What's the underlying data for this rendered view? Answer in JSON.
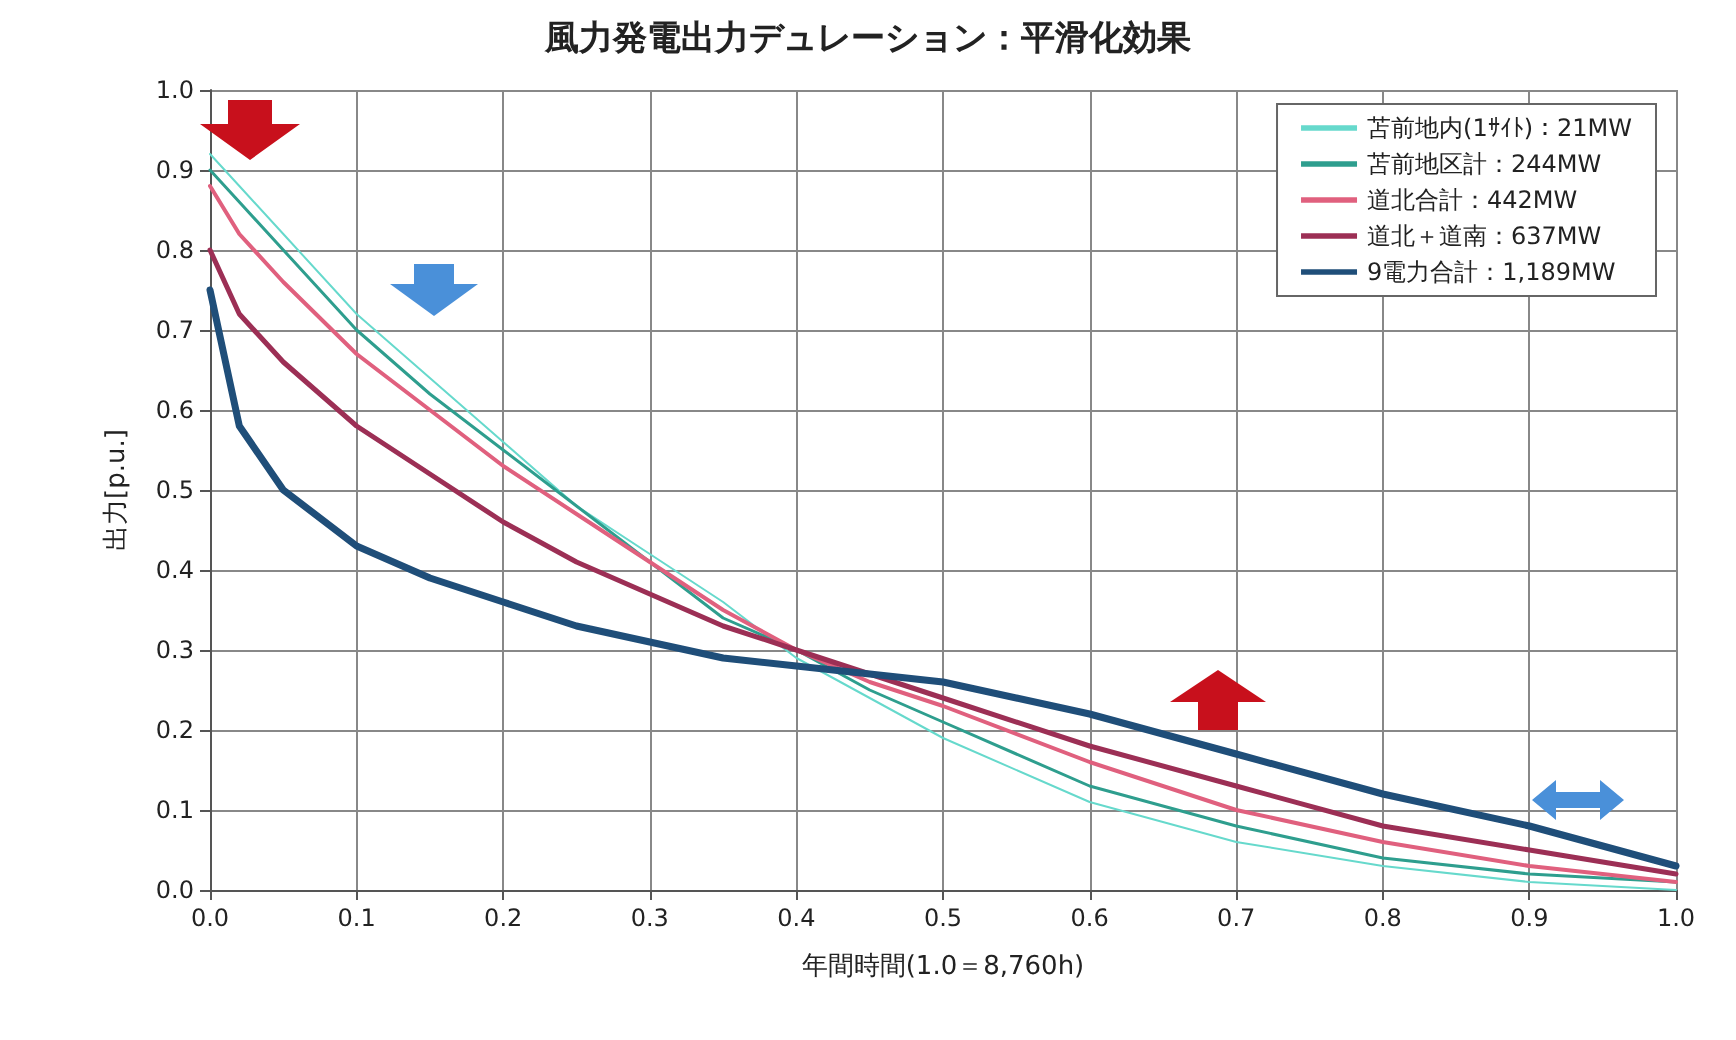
{
  "chart_data": {
    "type": "line",
    "title": "風力発電出力デュレーション：平滑化効果",
    "xlabel": "年間時間(1.0＝8,760h)",
    "ylabel": "出力[p.u.]",
    "x": [
      0,
      0.02,
      0.05,
      0.1,
      0.15,
      0.2,
      0.25,
      0.3,
      0.35,
      0.4,
      0.45,
      0.5,
      0.6,
      0.7,
      0.8,
      0.9,
      1.0
    ],
    "xlim": [
      0,
      1
    ],
    "xticks": [
      {
        "value": 0,
        "label": "0.0"
      },
      0.1,
      0.2,
      0.3,
      0.4,
      0.5,
      0.6,
      0.7,
      0.8,
      0.9,
      {
        "value": 1,
        "label": "1.0"
      }
    ],
    "ylim": [
      0,
      1
    ],
    "yticks": [
      {
        "value": 0,
        "label": "0.0"
      },
      0.1,
      0.2,
      0.3,
      0.4,
      0.5,
      0.6,
      0.7,
      0.8,
      0.9,
      {
        "value": 1,
        "label": "1.0"
      }
    ],
    "grid": true,
    "legend": "top right",
    "marker": "none",
    "line_style": "solid",
    "series": [
      {
        "name": "苫前地内(1ｻｲﾄ)：21MW",
        "color": "#66d9cc",
        "values": [
          0.92,
          0.88,
          0.82,
          0.72,
          0.64,
          0.56,
          0.48,
          0.42,
          0.36,
          0.29,
          0.24,
          0.19,
          0.11,
          0.06,
          0.03,
          0.01,
          0.0
        ]
      },
      {
        "name": "苫前地区計：244MW",
        "color": "#2e9e8e",
        "values": [
          0.9,
          0.86,
          0.8,
          0.7,
          0.62,
          0.55,
          0.48,
          0.41,
          0.34,
          0.3,
          0.25,
          0.21,
          0.13,
          0.08,
          0.04,
          0.02,
          0.01
        ]
      },
      {
        "name": "道北合計：442MW",
        "color": "#e0607e",
        "values": [
          0.88,
          0.82,
          0.76,
          0.67,
          0.6,
          0.53,
          0.47,
          0.41,
          0.35,
          0.3,
          0.26,
          0.23,
          0.16,
          0.1,
          0.06,
          0.03,
          0.01
        ]
      },
      {
        "name": "道北＋道南：637MW",
        "color": "#9c2f55",
        "values": [
          0.8,
          0.72,
          0.66,
          0.58,
          0.52,
          0.46,
          0.41,
          0.37,
          0.33,
          0.3,
          0.27,
          0.24,
          0.18,
          0.13,
          0.08,
          0.05,
          0.02
        ]
      },
      {
        "name": "9電力合計：1,189MW",
        "color": "#1f4e79",
        "values": [
          0.75,
          0.58,
          0.5,
          0.43,
          0.39,
          0.36,
          0.33,
          0.31,
          0.29,
          0.28,
          0.27,
          0.26,
          0.22,
          0.17,
          0.12,
          0.08,
          0.03
        ]
      }
    ]
  }
}
